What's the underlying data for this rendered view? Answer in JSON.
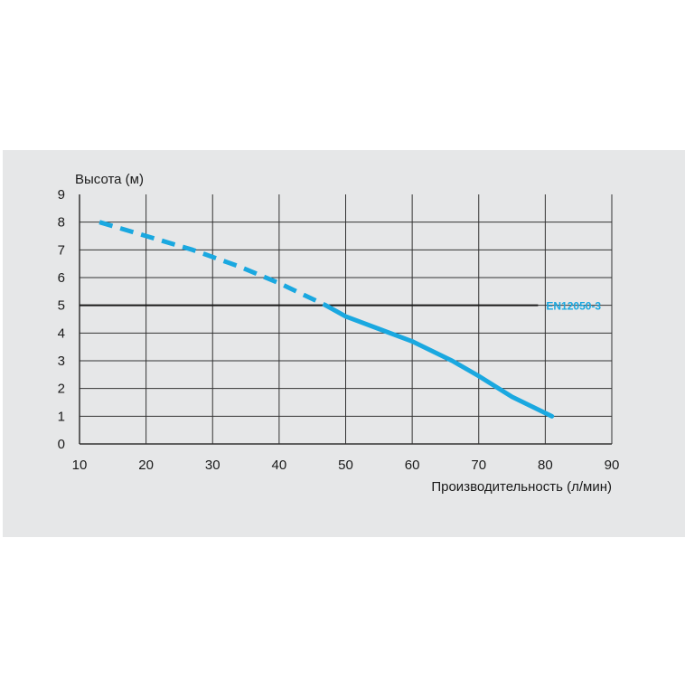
{
  "chart_data": {
    "type": "line",
    "title": "",
    "xlabel": "Производительность (л/мин)",
    "ylabel": "Высота (м)",
    "xlim": [
      10,
      90
    ],
    "ylim": [
      0,
      9
    ],
    "x_ticks": [
      "10",
      "20",
      "30",
      "40",
      "50",
      "60",
      "70",
      "80",
      "90"
    ],
    "y_ticks": [
      "0",
      "1",
      "2",
      "3",
      "4",
      "5",
      "6",
      "7",
      "8",
      "9"
    ],
    "grid": true,
    "series": [
      {
        "name": "",
        "style": "dashed",
        "color": "#1aa8e0",
        "x": [
          13,
          20,
          27,
          34,
          40,
          47
        ],
        "y": [
          8.0,
          7.5,
          7.0,
          6.4,
          5.8,
          5.0
        ]
      },
      {
        "name": "",
        "style": "solid",
        "color": "#1aa8e0",
        "x": [
          47,
          50,
          55,
          60,
          66,
          70,
          75,
          81
        ],
        "y": [
          5.0,
          4.6,
          4.15,
          3.7,
          3.0,
          2.45,
          1.7,
          1.0
        ]
      }
    ],
    "reference_line": {
      "y": 5,
      "x_end": 80,
      "label": "EN12050-3",
      "color": "#1a1a1a",
      "label_color": "#1aa8e0"
    },
    "background": "#e6e7e8",
    "grid_color": "#333333"
  }
}
